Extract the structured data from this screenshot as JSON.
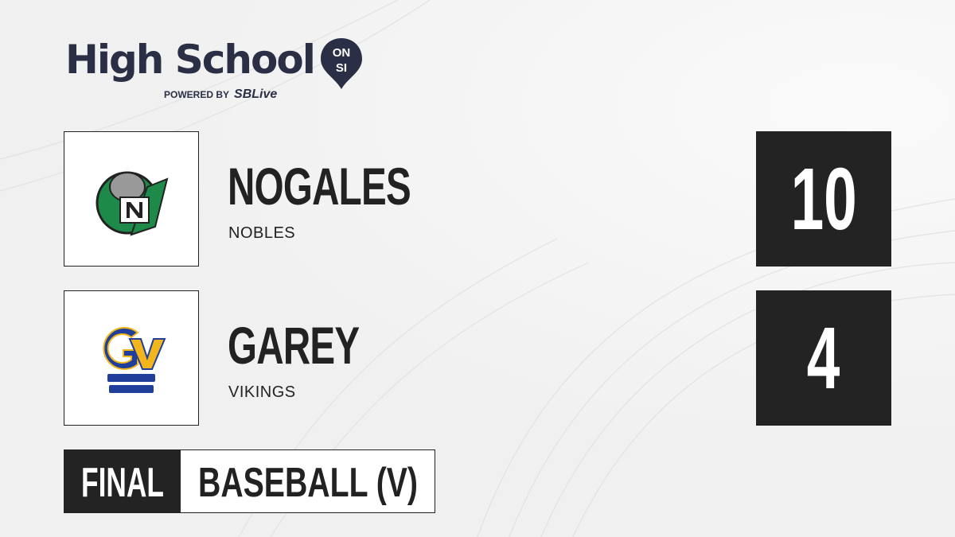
{
  "brand": {
    "title": "High School",
    "badge_top": "ON",
    "badge_bottom": "SI",
    "powered_by": "POWERED BY",
    "partner": "SBLive"
  },
  "teams": [
    {
      "name": "NOGALES",
      "mascot": "NOBLES",
      "score": "10",
      "logo": "nogales-knight-logo",
      "colors": [
        "#1e8a4a",
        "#222222"
      ]
    },
    {
      "name": "GAREY",
      "mascot": "VIKINGS",
      "score": "4",
      "logo": "garey-vikings-logo",
      "colors": [
        "#1f3f9a",
        "#f2b51c"
      ]
    }
  ],
  "status": {
    "state": "FINAL",
    "sport": "BASEBALL (V)"
  }
}
